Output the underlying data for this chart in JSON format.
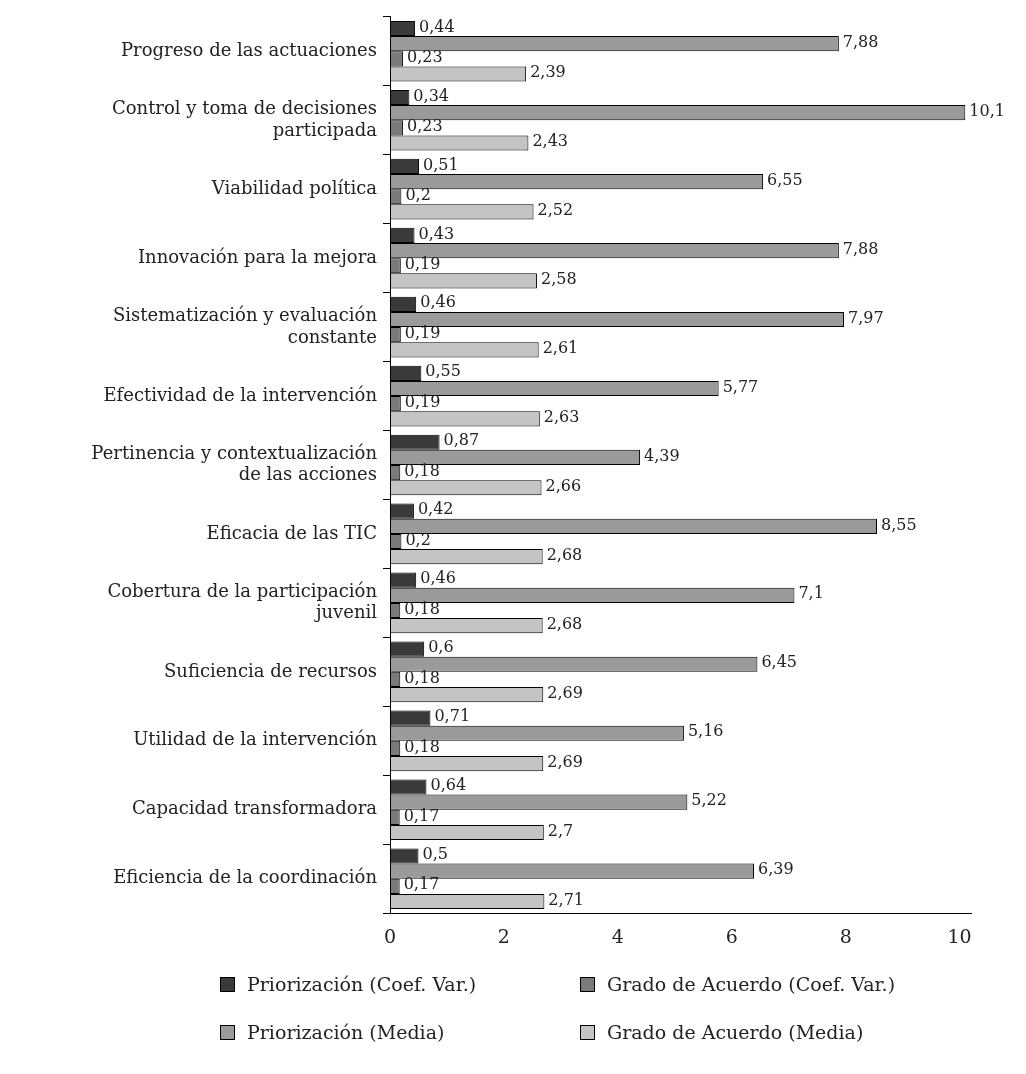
{
  "chart_data": {
    "type": "bar",
    "orientation": "horizontal",
    "categories": [
      "Progreso de las actuaciones",
      "Control y toma de decisiones participada",
      "Viabilidad política",
      "Innovación para la mejora",
      "Sistematización y evaluación constante",
      "Efectividad de la intervención",
      "Pertinencia y contextualización de las acciones",
      "Eficacia de las TIC",
      "Cobertura de la participación juvenil",
      "Suficiencia de recursos",
      "Utilidad de la intervención",
      "Capacidad transformadora",
      "Eficiencia de la coordinación"
    ],
    "series": [
      {
        "name": "Priorización (Coef. Var.)",
        "color": "#3a3a3a",
        "values": [
          0.44,
          0.34,
          0.51,
          0.43,
          0.46,
          0.55,
          0.87,
          0.42,
          0.46,
          0.6,
          0.71,
          0.64,
          0.5
        ],
        "value_labels": [
          "0,44",
          "0,34",
          "0,51",
          "0,43",
          "0,46",
          "0,55",
          "0,87",
          "0,42",
          "0,46",
          "0,6",
          "0,71",
          "0,64",
          "0,5"
        ]
      },
      {
        "name": "Priorización (Media)",
        "color": "#9a9a9a",
        "values": [
          7.88,
          10.1,
          6.55,
          7.88,
          7.97,
          5.77,
          4.39,
          8.55,
          7.1,
          6.45,
          5.16,
          5.22,
          6.39
        ],
        "value_labels": [
          "7,88",
          "10,1",
          "6,55",
          "7,88",
          "7,97",
          "5,77",
          "4,39",
          "8,55",
          "7,1",
          "6,45",
          "5,16",
          "5,22",
          "6,39"
        ]
      },
      {
        "name": "Grado de Acuerdo (Coef. Var.)",
        "color": "#7a7a7a",
        "values": [
          0.23,
          0.23,
          0.2,
          0.19,
          0.19,
          0.19,
          0.18,
          0.2,
          0.18,
          0.18,
          0.18,
          0.17,
          0.17
        ],
        "value_labels": [
          "0,23",
          "0,23",
          "0,2",
          "0,19",
          "0,19",
          "0,19",
          "0,18",
          "0,2",
          "0,18",
          "0,18",
          "0,18",
          "0,17",
          "0,17"
        ]
      },
      {
        "name": "Grado de Acuerdo (Media)",
        "color": "#c4c4c4",
        "values": [
          2.39,
          2.43,
          2.52,
          2.58,
          2.61,
          2.63,
          2.66,
          2.68,
          2.68,
          2.69,
          2.69,
          2.7,
          2.71
        ],
        "value_labels": [
          "2,39",
          "2,43",
          "2,52",
          "2,58",
          "2,61",
          "2,63",
          "2,66",
          "2,68",
          "2,68",
          "2,69",
          "2,69",
          "2,7",
          "2,71"
        ]
      }
    ],
    "xlim": [
      0,
      10.2
    ],
    "xticks": [
      0,
      2,
      4,
      6,
      8,
      10
    ],
    "grid": false,
    "legend": "bottom"
  }
}
